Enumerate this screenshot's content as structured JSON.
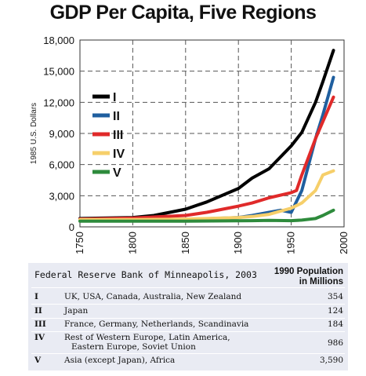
{
  "chart_data": {
    "type": "line",
    "title": "GDP Per Capita, Five Regions",
    "ylabel": "1985 U.S. Dollars",
    "xlabel": "",
    "xlim": [
      1750,
      2000
    ],
    "ylim": [
      0,
      18000
    ],
    "x_ticks": [
      "1750",
      "1800",
      "1850",
      "1900",
      "1950",
      "2000"
    ],
    "y_ticks": [
      "0",
      "3,000",
      "6,000",
      "9,000",
      "12,000",
      "15,000",
      "18,000"
    ],
    "grid": "dashed",
    "legend_position": "left-middle",
    "series": [
      {
        "name": "I",
        "color": "#000000",
        "x": [
          1750,
          1800,
          1820,
          1850,
          1870,
          1900,
          1913,
          1929,
          1950,
          1960,
          1973,
          1980,
          1990
        ],
        "y": [
          800,
          900,
          1100,
          1700,
          2400,
          3700,
          4700,
          5600,
          7800,
          9100,
          12000,
          14000,
          17000
        ]
      },
      {
        "name": "II",
        "color": "#1f5f9f",
        "x": [
          1750,
          1850,
          1900,
          1913,
          1929,
          1940,
          1950,
          1960,
          1973,
          1980,
          1990
        ],
        "y": [
          700,
          700,
          900,
          1100,
          1400,
          1600,
          1400,
          3500,
          8500,
          10800,
          14400
        ]
      },
      {
        "name": "III",
        "color": "#e02a2a",
        "x": [
          1750,
          1800,
          1850,
          1870,
          1900,
          1913,
          1929,
          1950,
          1955,
          1960,
          1973,
          1990
        ],
        "y": [
          750,
          850,
          1100,
          1400,
          2000,
          2300,
          2800,
          3300,
          3500,
          5000,
          8500,
          12500
        ]
      },
      {
        "name": "IV",
        "color": "#f6cf6a",
        "x": [
          1750,
          1800,
          1850,
          1900,
          1913,
          1929,
          1950,
          1960,
          1973,
          1980,
          1990
        ],
        "y": [
          700,
          700,
          750,
          900,
          1000,
          1200,
          1800,
          2300,
          3500,
          5000,
          5400
        ]
      },
      {
        "name": "V",
        "color": "#2e8b3c",
        "x": [
          1750,
          1800,
          1850,
          1900,
          1913,
          1929,
          1950,
          1960,
          1973,
          1980,
          1990
        ],
        "y": [
          550,
          550,
          550,
          580,
          600,
          620,
          600,
          650,
          800,
          1100,
          1600
        ]
      }
    ]
  },
  "table": {
    "source": "Federal Reserve Bank of Minneapolis, 2003",
    "pop_header_line1": "1990 Population",
    "pop_header_line2": "in Millions",
    "rows": [
      {
        "id": "I",
        "desc_line1": "UK, USA, Canada, Australia, New Zealand",
        "desc_line2": "",
        "pop": "354"
      },
      {
        "id": "II",
        "desc_line1": "Japan",
        "desc_line2": "",
        "pop": "124"
      },
      {
        "id": "III",
        "desc_line1": "France, Germany, Netherlands, Scandinavia",
        "desc_line2": "",
        "pop": "184"
      },
      {
        "id": "IV",
        "desc_line1": "Rest of Western Europe, Latin America,",
        "desc_line2": "Eastern Europe, Soviet Union",
        "pop": "986"
      },
      {
        "id": "V",
        "desc_line1": "Asia (except Japan), Africa",
        "desc_line2": "",
        "pop": "3,590"
      }
    ]
  }
}
